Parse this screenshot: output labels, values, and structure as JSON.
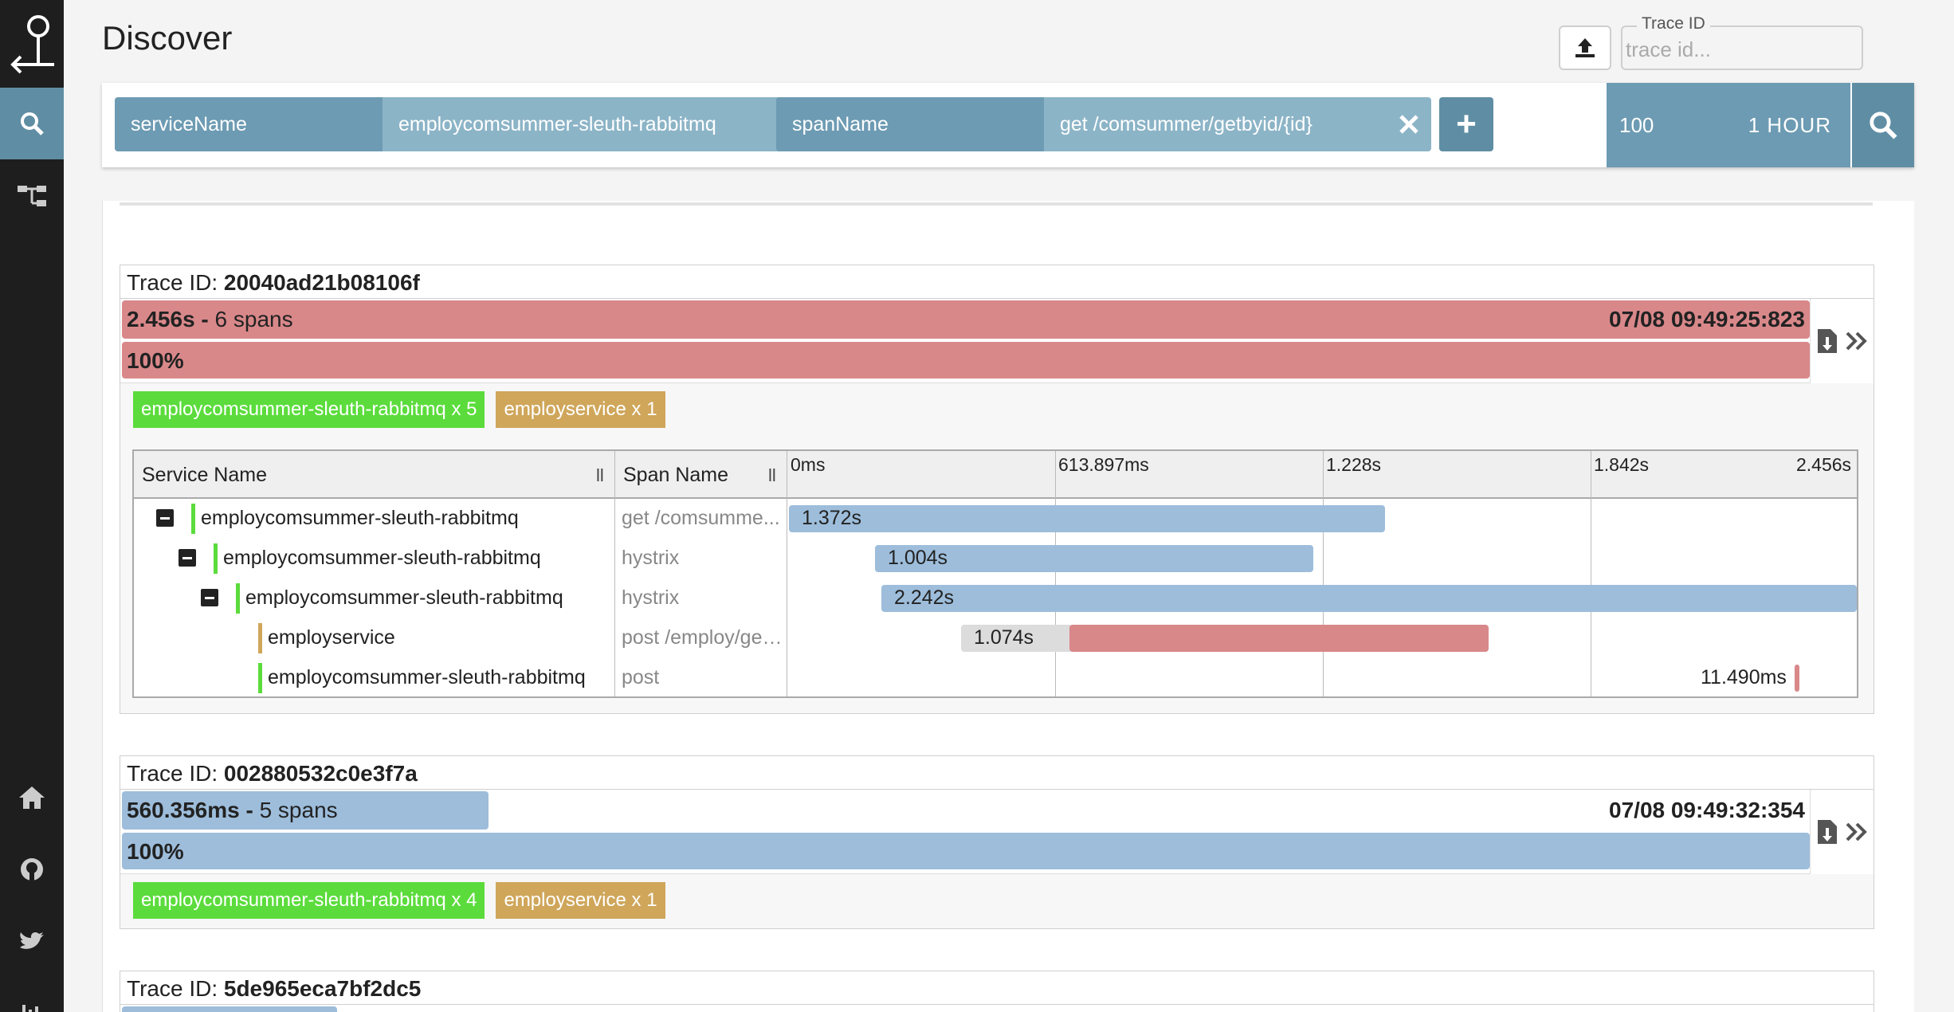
{
  "header": {
    "title": "Discover",
    "trace_id_label": "Trace ID",
    "trace_id_placeholder": "trace id..."
  },
  "filters": [
    {
      "key": "serviceName",
      "value": "employcomsummer-sleuth-rabbitmq"
    },
    {
      "key": "spanName",
      "value": "get /comsummer/getbyid/{id}"
    }
  ],
  "add_label": "+",
  "limit": "100",
  "lookback": "1 HOUR",
  "traces": [
    {
      "id_label": "Trace ID: ",
      "id": "20040ad21b08106f",
      "duration": "2.456s - ",
      "spans": "6 spans",
      "timestamp": "07/08 09:49:25:823",
      "percent": "100%",
      "tags": [
        "employcomsummer-sleuth-rabbitmq x 5",
        "employservice x 1"
      ]
    },
    {
      "id_label": "Trace ID: ",
      "id": "002880532c0e3f7a",
      "duration": "560.356ms - ",
      "spans": "5 spans",
      "timestamp": "07/08 09:49:32:354",
      "percent": "100%",
      "tags": [
        "employcomsummer-sleuth-rabbitmq x 4",
        "employservice x 1"
      ]
    },
    {
      "id_label": "Trace ID: ",
      "id": "5de965eca7bf2dc5"
    }
  ],
  "span_table": {
    "col_service": "Service Name",
    "col_span": "Span Name",
    "grip": "ll",
    "ticks": [
      "0ms",
      "613.897ms",
      "1.228s",
      "1.842s",
      "2.456s"
    ],
    "rows": [
      {
        "service": "employcomsummer-sleuth-rabbitmq",
        "span": "get /comsumme...",
        "duration": "1.372s"
      },
      {
        "service": "employcomsummer-sleuth-rabbitmq",
        "span": "hystrix",
        "duration": "1.004s"
      },
      {
        "service": "employcomsummer-sleuth-rabbitmq",
        "span": "hystrix",
        "duration": "2.242s"
      },
      {
        "service": "employservice",
        "span": "post /employ/get...",
        "duration": "1.074s"
      },
      {
        "service": "employcomsummer-sleuth-rabbitmq",
        "span": "post",
        "duration": "11.490ms"
      }
    ]
  },
  "colors": {
    "error": "#d9888a",
    "normal": "#9dbddb",
    "service_a": "#5bdc3c",
    "service_b": "#cfa65a",
    "accent": "#5f8ea4"
  },
  "sidebar": {
    "items": [
      "logo-icon",
      "search-icon",
      "dependencies-icon",
      "home-icon",
      "github-icon",
      "twitter-icon",
      "stats-icon"
    ]
  }
}
